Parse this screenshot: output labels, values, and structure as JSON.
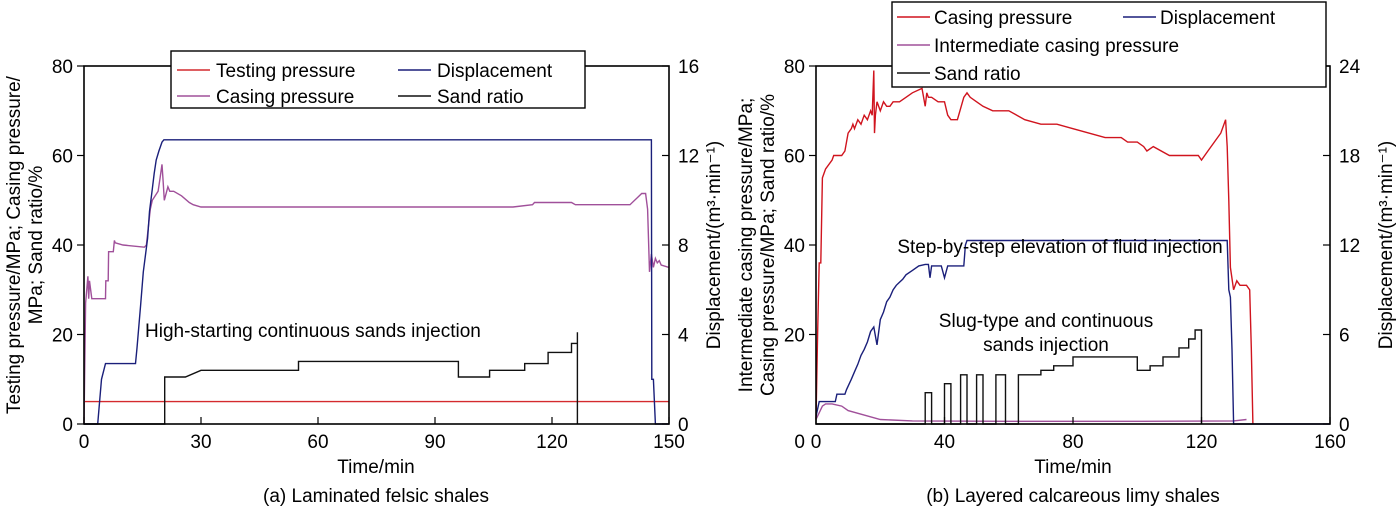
{
  "colors": {
    "testing_pressure": "#d42a2e",
    "casing_pressure_a": "#a0509a",
    "displacement": "#1a1f7a",
    "sand_ratio": "#111111",
    "casing_pressure_b": "#d0141e",
    "intermediate_casing_pressure": "#a0509a"
  },
  "chart_data": [
    {
      "type": "line",
      "caption": "(a) Laminated felsic shales",
      "xlabel": "Time/min",
      "ylabel_left": [
        "Testing pressure/MPa; Casing pressure/",
        "MPa; Sand ratio/%"
      ],
      "ylabel_right": "Displacement/(m³·min⁻¹)",
      "xlim": [
        0,
        150
      ],
      "ylim_left": [
        0,
        80
      ],
      "ylim_right": [
        0,
        16
      ],
      "xticks": [
        0,
        30,
        60,
        90,
        120,
        150
      ],
      "yticks_left": [
        0,
        20,
        40,
        60,
        80
      ],
      "yticks_right": [
        0,
        4,
        8,
        12,
        16
      ],
      "legend_position": "top-center",
      "legend": [
        "Testing pressure",
        "Displacement",
        "Casing pressure",
        "Sand ratio"
      ],
      "annotations": [
        "High-starting continuous sands injection"
      ],
      "series": [
        {
          "name": "Testing pressure",
          "axis": "left",
          "color_key": "testing_pressure",
          "x": [
            0,
            150
          ],
          "y": [
            5,
            5
          ]
        },
        {
          "name": "Casing pressure",
          "axis": "left",
          "color_key": "casing_pressure_a",
          "x": [
            0,
            0.4,
            1,
            1.2,
            1.4,
            2,
            5.5,
            5.6,
            6.2,
            6.3,
            7.5,
            7.8,
            8,
            10,
            15.5,
            16,
            17,
            17.5,
            19,
            19.5,
            20,
            20.3,
            20.6,
            21.5,
            22,
            23,
            25,
            27,
            28,
            30,
            35,
            40,
            50,
            60,
            70,
            80,
            90,
            100,
            110,
            115,
            115.5,
            125,
            126,
            135,
            140,
            143,
            144,
            144.5,
            145,
            145.5,
            146,
            146.5,
            147,
            147.5,
            148,
            150
          ],
          "y": [
            0,
            27,
            33,
            28,
            32,
            28,
            28,
            32,
            32,
            38.5,
            38.5,
            41,
            40.5,
            40,
            39.5,
            40,
            48,
            50,
            52,
            55,
            58,
            54,
            50,
            53,
            52,
            52,
            51,
            49.5,
            49,
            48.5,
            48.5,
            48.5,
            48.5,
            48.5,
            48.5,
            48.5,
            48.5,
            48.5,
            48.5,
            49,
            49.5,
            49.5,
            49,
            49,
            49,
            51.5,
            51.5,
            48,
            34,
            38,
            35,
            37,
            36,
            36.5,
            35.5,
            35
          ]
        },
        {
          "name": "Displacement",
          "axis": "right",
          "color_key": "displacement",
          "x": [
            0,
            3.5,
            4,
            4.5,
            5.5,
            6,
            6.5,
            13.2,
            13.6,
            14.5,
            15.2,
            15.8,
            16.3,
            16.8,
            17.5,
            18,
            18.5,
            19.2,
            20,
            20.5,
            21,
            145.5,
            145.6,
            146,
            146.5,
            150
          ],
          "y": [
            0,
            0,
            1,
            2,
            2.7,
            2.7,
            2.7,
            2.7,
            3.4,
            5.3,
            6.8,
            7.6,
            8.3,
            9.5,
            10.5,
            11.2,
            11.8,
            12.2,
            12.6,
            12.7,
            12.7,
            12.7,
            2,
            2,
            0,
            0
          ]
        },
        {
          "name": "Sand ratio",
          "axis": "left",
          "color_key": "sand_ratio",
          "x": [
            0,
            20.7,
            20.7,
            26,
            26,
            30,
            30,
            55,
            55,
            96,
            96,
            104,
            104,
            113,
            113,
            119,
            119,
            125,
            125,
            126.5,
            126.5,
            126.5
          ],
          "y": [
            0,
            0,
            10.5,
            10.5,
            10.5,
            12,
            12,
            12,
            14,
            14,
            10.5,
            10.5,
            12,
            12,
            13.5,
            13.5,
            16,
            16,
            18,
            18,
            20.5,
            0
          ]
        }
      ]
    },
    {
      "type": "line",
      "caption": "(b) Layered calcareous limy shales",
      "xlabel": "Time/min",
      "ylabel_left": [
        "Intermediate casing pressure/MPa;",
        "Casing pressure/MPa; Sand ratio/%"
      ],
      "ylabel_right": "Displacement/(m³·min⁻¹)",
      "xlim": [
        0,
        160
      ],
      "ylim_left": [
        0,
        80
      ],
      "ylim_right": [
        0,
        24
      ],
      "xticks": [
        0,
        40,
        80,
        120,
        160
      ],
      "yticks_left": [
        20,
        40,
        60,
        80
      ],
      "yticks_right": [
        0,
        6,
        12,
        18,
        24
      ],
      "legend_position": "top-right",
      "legend": [
        "Casing pressure",
        "Displacement",
        "Intermediate casing pressure",
        "Sand ratio"
      ],
      "annotations": [
        "Step-by-step elevation of fluid injection",
        "Slug-type and continuous",
        "sands injection"
      ],
      "series": [
        {
          "name": "Casing pressure",
          "axis": "left",
          "color_key": "casing_pressure_b",
          "x": [
            0,
            0.5,
            1,
            1.5,
            2,
            2.5,
            3,
            5,
            5.5,
            8,
            9,
            10,
            11,
            11.5,
            12,
            13,
            14,
            15,
            16,
            17,
            17.5,
            18,
            18.2,
            18.5,
            19,
            20,
            21,
            22,
            23,
            24,
            25,
            26,
            28,
            30,
            33,
            34,
            34.5,
            35,
            36,
            38,
            40,
            41,
            42,
            44,
            46,
            47,
            48,
            50,
            52,
            55,
            58,
            60,
            65,
            70,
            75,
            80,
            90,
            95,
            97,
            100,
            102,
            103,
            105,
            110,
            115,
            119,
            120,
            122,
            124,
            126,
            127,
            127.5,
            128,
            128.5,
            129,
            130,
            131,
            132,
            134,
            135,
            135.5,
            136
          ],
          "y": [
            1,
            20,
            36,
            36,
            55,
            56,
            57,
            59,
            60,
            60,
            61,
            65,
            66,
            67,
            66,
            68,
            67,
            69,
            68,
            70,
            69,
            79,
            65,
            69,
            72,
            70,
            72,
            71,
            71,
            72,
            72,
            72,
            73,
            74,
            75,
            71,
            74,
            73,
            73,
            72,
            72,
            69,
            68,
            68,
            73,
            74,
            73,
            72,
            71,
            70,
            70,
            70,
            68,
            67,
            67,
            66,
            64,
            64,
            63,
            63,
            62,
            61,
            62,
            60,
            60,
            60,
            59,
            61,
            63,
            65,
            67,
            68,
            62,
            50,
            35,
            30,
            32,
            31,
            31,
            30,
            17,
            0
          ]
        },
        {
          "name": "Intermediate casing pressure",
          "axis": "left",
          "color_key": "intermediate_casing_pressure",
          "x": [
            0,
            2,
            3,
            5,
            8,
            10,
            15,
            20,
            30,
            60,
            100,
            130,
            134
          ],
          "y": [
            1,
            4,
            4.5,
            4.5,
            4,
            3,
            2,
            1,
            0.7,
            0.6,
            0.6,
            0.7,
            1
          ]
        },
        {
          "name": "Displacement",
          "axis": "right",
          "color_key": "displacement",
          "x": [
            0,
            1,
            2,
            6,
            6.5,
            9,
            9.5,
            11,
            12,
            13,
            14,
            15,
            16,
            17,
            18,
            19,
            20,
            21,
            22,
            23,
            24,
            25,
            26,
            27,
            28,
            30,
            32,
            34,
            35,
            35.5,
            36,
            38,
            39,
            40,
            41,
            44,
            46,
            46.5,
            47,
            48,
            50,
            60,
            70,
            80,
            100,
            120,
            128,
            128.5,
            129,
            129.5,
            130,
            130.5,
            136,
            160
          ],
          "y": [
            0.5,
            1.5,
            1.5,
            1.5,
            2,
            2,
            2.3,
            3,
            3.5,
            4,
            4.6,
            5,
            5.5,
            6.2,
            6.5,
            5.3,
            7,
            7.5,
            8.2,
            8.5,
            9,
            9.3,
            9.5,
            9.7,
            10,
            10.3,
            10.6,
            10.7,
            10.7,
            9.8,
            10.6,
            10.6,
            10.6,
            9.8,
            10.6,
            10.6,
            10.6,
            12,
            12.3,
            12.3,
            12.3,
            12.3,
            12.3,
            12.3,
            12.3,
            12.3,
            12.3,
            9,
            8.5,
            5,
            0,
            0,
            0,
            0
          ]
        },
        {
          "name": "Sand ratio",
          "axis": "left",
          "color_key": "sand_ratio",
          "x": [
            0,
            34,
            34,
            36,
            36,
            40,
            40,
            42,
            42,
            45,
            45,
            47,
            47,
            50,
            50,
            52,
            52,
            56,
            56,
            59,
            59,
            63,
            63,
            66,
            66,
            70,
            70,
            74,
            74,
            80,
            80,
            100,
            100,
            104,
            104,
            108,
            108,
            113,
            113,
            116,
            116,
            118,
            118,
            120,
            120
          ],
          "y": [
            0,
            0,
            7,
            7,
            0,
            0,
            9,
            9,
            0,
            0,
            11,
            11,
            0,
            0,
            11,
            11,
            0,
            0,
            11,
            11,
            0,
            0,
            11,
            11,
            11,
            11,
            12,
            12,
            13,
            13,
            15,
            15,
            12,
            12,
            13,
            13,
            15,
            15,
            17,
            17,
            19,
            19,
            21,
            21,
            0
          ]
        }
      ]
    }
  ]
}
